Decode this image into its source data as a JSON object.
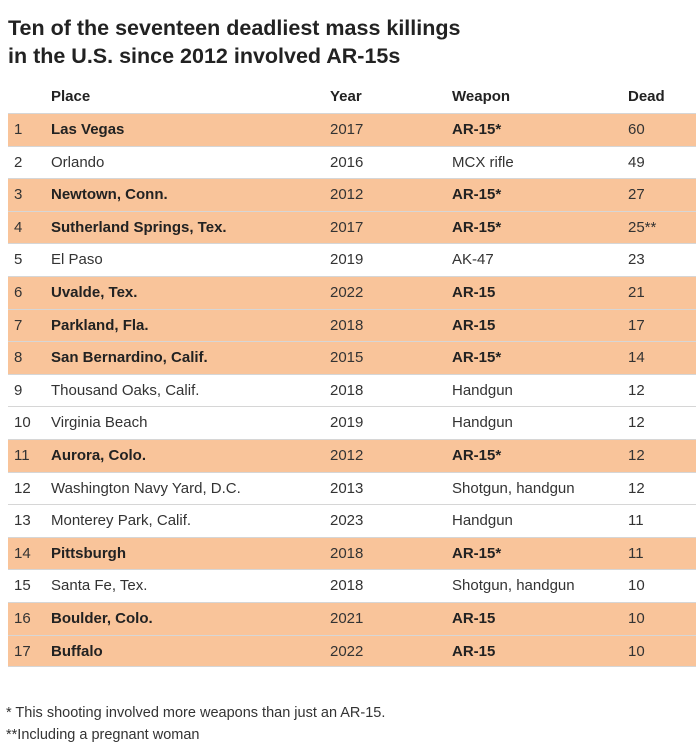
{
  "chart_data": {
    "type": "table",
    "title_lines": [
      "Ten of the seventeen deadliest mass killings",
      "in the U.S. since 2012 involved AR-15s"
    ],
    "columns": [
      "Place",
      "Year",
      "Weapon",
      "Dead"
    ],
    "highlight_color": "#f9c49a",
    "rows": [
      {
        "rank": "1",
        "place": "Las Vegas",
        "year": "2017",
        "weapon": "AR-15*",
        "dead": "60",
        "ar15": true
      },
      {
        "rank": "2",
        "place": "Orlando",
        "year": "2016",
        "weapon": "MCX rifle",
        "dead": "49",
        "ar15": false
      },
      {
        "rank": "3",
        "place": "Newtown, Conn.",
        "year": "2012",
        "weapon": "AR-15*",
        "dead": "27",
        "ar15": true
      },
      {
        "rank": "4",
        "place": "Sutherland Springs, Tex.",
        "year": "2017",
        "weapon": "AR-15*",
        "dead": "25**",
        "ar15": true
      },
      {
        "rank": "5",
        "place": "El Paso",
        "year": "2019",
        "weapon": "AK-47",
        "dead": "23",
        "ar15": false
      },
      {
        "rank": "6",
        "place": "Uvalde, Tex.",
        "year": "2022",
        "weapon": "AR-15",
        "dead": "21",
        "ar15": true
      },
      {
        "rank": "7",
        "place": "Parkland, Fla.",
        "year": "2018",
        "weapon": "AR-15",
        "dead": "17",
        "ar15": true
      },
      {
        "rank": "8",
        "place": "San Bernardino, Calif.",
        "year": "2015",
        "weapon": "AR-15*",
        "dead": "14",
        "ar15": true
      },
      {
        "rank": "9",
        "place": "Thousand Oaks, Calif.",
        "year": "2018",
        "weapon": "Handgun",
        "dead": "12",
        "ar15": false
      },
      {
        "rank": "10",
        "place": "Virginia Beach",
        "year": "2019",
        "weapon": "Handgun",
        "dead": "12",
        "ar15": false
      },
      {
        "rank": "11",
        "place": "Aurora, Colo.",
        "year": "2012",
        "weapon": "AR-15*",
        "dead": "12",
        "ar15": true
      },
      {
        "rank": "12",
        "place": "Washington Navy Yard, D.C.",
        "year": "2013",
        "weapon": "Shotgun, handgun",
        "dead": "12",
        "ar15": false
      },
      {
        "rank": "13",
        "place": "Monterey Park, Calif.",
        "year": "2023",
        "weapon": "Handgun",
        "dead": "11",
        "ar15": false
      },
      {
        "rank": "14",
        "place": "Pittsburgh",
        "year": "2018",
        "weapon": "AR-15*",
        "dead": "11",
        "ar15": true
      },
      {
        "rank": "15",
        "place": "Santa Fe, Tex.",
        "year": "2018",
        "weapon": "Shotgun, handgun",
        "dead": "10",
        "ar15": false
      },
      {
        "rank": "16",
        "place": "Boulder, Colo.",
        "year": "2021",
        "weapon": "AR-15",
        "dead": "10",
        "ar15": true
      },
      {
        "rank": "17",
        "place": "Buffalo",
        "year": "2022",
        "weapon": "AR-15",
        "dead": "10",
        "ar15": true
      }
    ],
    "notes": [
      "*  This shooting involved more weapons than just an AR-15.",
      "**Including a pregnant woman"
    ]
  }
}
